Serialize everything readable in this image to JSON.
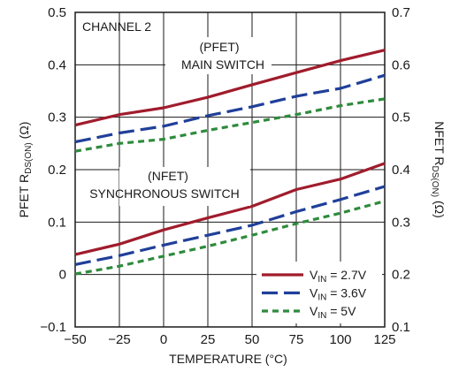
{
  "chart_data": {
    "type": "line",
    "annotations": {
      "channel": "CHANNEL 2",
      "pfet_line1": "(PFET)",
      "pfet_line2": "MAIN SWITCH",
      "nfet_line1": "(NFET)",
      "nfet_line2": "SYNCHRONOUS SWITCH"
    },
    "xlabel": "TEMPERATURE (°C)",
    "ylabel_left": {
      "main": "PFET R",
      "sub": "DS(ON)",
      "unit": " (Ω)"
    },
    "ylabel_right": {
      "main": "NFET R",
      "sub": "DS(ON)",
      "unit": " (Ω)"
    },
    "xlim": [
      -50,
      125
    ],
    "ylim_left": [
      -0.1,
      0.5
    ],
    "ylim_right": [
      0.1,
      0.7
    ],
    "x_ticks": [
      "−50",
      "−25",
      "0",
      "25",
      "50",
      "75",
      "100",
      "125"
    ],
    "y_ticks_left": [
      "0.5",
      "0.4",
      "0.3",
      "0.2",
      "0.1",
      "0",
      "−0.1"
    ],
    "y_ticks_right": [
      "0.7",
      "0.6",
      "0.5",
      "0.4",
      "0.3",
      "0.2",
      "0.1"
    ],
    "grid": true,
    "legend_position": "bottom-right",
    "x": [
      -50,
      -25,
      0,
      25,
      50,
      75,
      100,
      125
    ],
    "series": [
      {
        "name_main": "V",
        "name_sub": "IN",
        "name_rest": " = 2.7V",
        "color": "#a01c2c",
        "dash": "solid",
        "group": "PFET",
        "values": [
          0.285,
          0.305,
          0.318,
          0.338,
          0.362,
          0.385,
          0.408,
          0.428
        ]
      },
      {
        "name_main": "V",
        "name_sub": "IN",
        "name_rest": " = 3.6V",
        "color": "#1f3f99",
        "dash": "long",
        "group": "PFET",
        "values": [
          0.253,
          0.27,
          0.283,
          0.303,
          0.32,
          0.34,
          0.355,
          0.38
        ]
      },
      {
        "name_main": "V",
        "name_sub": "IN",
        "name_rest": " = 5V",
        "color": "#2e8b3c",
        "dash": "short",
        "group": "PFET",
        "values": [
          0.235,
          0.25,
          0.258,
          0.275,
          0.29,
          0.305,
          0.322,
          0.335
        ]
      },
      {
        "name_main": "V",
        "name_sub": "IN",
        "name_rest": " = 2.7V",
        "color": "#a01c2c",
        "dash": "solid",
        "group": "NFET",
        "values": [
          0.038,
          0.058,
          0.085,
          0.108,
          0.13,
          0.162,
          0.182,
          0.212
        ]
      },
      {
        "name_main": "V",
        "name_sub": "IN",
        "name_rest": " = 3.6V",
        "color": "#1f3f99",
        "dash": "long",
        "group": "NFET",
        "values": [
          0.019,
          0.036,
          0.056,
          0.075,
          0.094,
          0.12,
          0.143,
          0.168
        ]
      },
      {
        "name_main": "V",
        "name_sub": "IN",
        "name_rest": " = 5V",
        "color": "#2e8b3c",
        "dash": "short",
        "group": "NFET",
        "values": [
          0.001,
          0.016,
          0.035,
          0.054,
          0.075,
          0.097,
          0.117,
          0.14
        ]
      }
    ]
  }
}
